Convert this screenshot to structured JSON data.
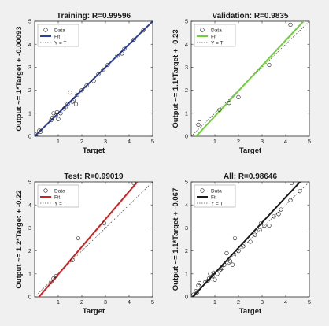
{
  "chart_data": [
    {
      "type": "scatter",
      "title": "Training: R=0.99596",
      "xlabel": "Target",
      "ylabel": "Output ~= 1*Target + -0.00093",
      "xlim": [
        0,
        5
      ],
      "ylim": [
        0,
        5
      ],
      "xticks": [
        1,
        2,
        3,
        4,
        5
      ],
      "yticks": [
        0,
        1,
        2,
        3,
        4,
        5
      ],
      "grid": false,
      "legend": {
        "placement": "top-left",
        "entries": [
          "Data",
          "Fit",
          "Y = T"
        ]
      },
      "fit": {
        "slope": 1,
        "intercept": -0.00093,
        "color": "#2a3f9e"
      },
      "identity_line": true,
      "points": {
        "x": [
          0.1,
          0.2,
          0.25,
          0.7,
          0.75,
          0.8,
          0.9,
          0.95,
          1.0,
          1.1,
          1.25,
          1.3,
          1.4,
          1.5,
          1.6,
          1.65,
          1.75,
          1.8,
          2.0,
          2.2,
          2.5,
          2.7,
          2.9,
          3.1,
          3.5,
          3.7,
          3.8,
          4.2,
          4.6
        ],
        "y": [
          0.1,
          0.25,
          0.2,
          0.7,
          0.8,
          1.0,
          0.9,
          1.05,
          0.75,
          1.0,
          1.2,
          1.25,
          1.4,
          1.9,
          1.5,
          1.55,
          1.4,
          1.8,
          2.0,
          2.2,
          2.4,
          2.7,
          2.9,
          3.1,
          3.5,
          3.6,
          3.8,
          4.2,
          4.6
        ]
      }
    },
    {
      "type": "scatter",
      "title": "Validation: R=0.9835",
      "xlabel": "Target",
      "ylabel": "Output ~= 1.1*Target + -0.23",
      "xlim": [
        0,
        5
      ],
      "ylim": [
        0,
        5
      ],
      "xticks": [
        1,
        2,
        3,
        4,
        5
      ],
      "yticks": [
        0,
        1,
        2,
        3,
        4,
        5
      ],
      "grid": false,
      "legend": {
        "placement": "top-left",
        "entries": [
          "Data",
          "Fit",
          "Y = T"
        ]
      },
      "fit": {
        "slope": 1.1,
        "intercept": -0.23,
        "color": "#6fcf3a"
      },
      "identity_line": true,
      "points": {
        "x": [
          0.3,
          0.35,
          1.2,
          1.6,
          2.0,
          3.3,
          4.2
        ],
        "y": [
          0.5,
          0.6,
          1.15,
          1.45,
          1.7,
          3.1,
          4.85
        ]
      }
    },
    {
      "type": "scatter",
      "title": "Test: R=0.99019",
      "xlabel": "Target",
      "ylabel": "Output ~= 1.2*Target + -0.22",
      "xlim": [
        0,
        5
      ],
      "ylim": [
        0,
        5
      ],
      "xticks": [
        1,
        2,
        3,
        4,
        5
      ],
      "yticks": [
        0,
        1,
        2,
        3,
        4,
        5
      ],
      "grid": false,
      "legend": {
        "placement": "top-left",
        "entries": [
          "Data",
          "Fit",
          "Y = T"
        ]
      },
      "fit": {
        "slope": 1.2,
        "intercept": -0.22,
        "color": "#d42020"
      },
      "identity_line": true,
      "points": {
        "x": [
          0.7,
          0.8,
          0.9,
          1.6,
          1.85,
          2.95,
          4.2
        ],
        "y": [
          0.65,
          0.8,
          0.9,
          1.6,
          2.55,
          3.2,
          4.95
        ]
      }
    },
    {
      "type": "scatter",
      "title": "All: R=0.98646",
      "xlabel": "Target",
      "ylabel": "Output ~= 1.1*Target + -0.067",
      "xlim": [
        0,
        5
      ],
      "ylim": [
        0,
        5
      ],
      "xticks": [
        1,
        2,
        3,
        4,
        5
      ],
      "yticks": [
        0,
        1,
        2,
        3,
        4,
        5
      ],
      "grid": false,
      "legend": {
        "placement": "top-left",
        "entries": [
          "Data",
          "Fit",
          "Y = T"
        ]
      },
      "fit": {
        "slope": 1.1,
        "intercept": -0.067,
        "color": "#1a1a1a"
      },
      "identity_line": true,
      "points": {
        "x": [
          0.1,
          0.2,
          0.25,
          0.3,
          0.35,
          0.6,
          0.7,
          0.75,
          0.8,
          0.85,
          0.9,
          0.95,
          1.0,
          1.1,
          1.2,
          1.25,
          1.3,
          1.4,
          1.5,
          1.6,
          1.65,
          1.75,
          1.8,
          1.85,
          2.0,
          2.2,
          2.5,
          2.7,
          2.9,
          2.95,
          3.1,
          3.3,
          3.5,
          3.7,
          3.8,
          4.2,
          4.25,
          4.6
        ],
        "y": [
          0.1,
          0.25,
          0.2,
          0.5,
          0.6,
          0.65,
          0.7,
          0.8,
          1.0,
          0.8,
          0.9,
          1.05,
          0.75,
          1.0,
          1.15,
          1.2,
          1.25,
          1.4,
          1.9,
          1.5,
          1.55,
          1.4,
          1.8,
          2.55,
          2.0,
          2.2,
          2.4,
          2.7,
          2.9,
          3.2,
          3.1,
          3.1,
          3.5,
          3.6,
          3.8,
          4.2,
          4.95,
          4.6
        ]
      }
    }
  ]
}
